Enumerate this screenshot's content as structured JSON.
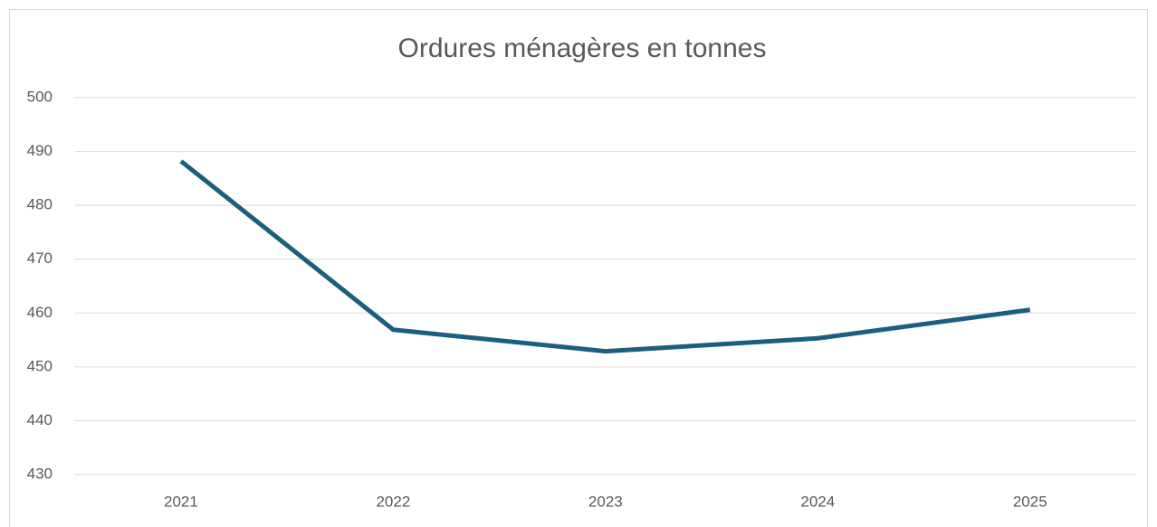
{
  "chart_data": {
    "type": "line",
    "title": "Ordures ménagères en tonnes",
    "categories": [
      "2021",
      "2022",
      "2023",
      "2024",
      "2025"
    ],
    "series": [
      {
        "name": "Ordures ménagères",
        "color": "#1b5e80",
        "values": [
          488.2,
          456.9,
          452.9,
          455.3,
          460.6
        ]
      }
    ],
    "ylim": [
      430,
      500
    ],
    "yticks": [
      430,
      440,
      450,
      460,
      470,
      480,
      490,
      500
    ],
    "grid": true
  }
}
